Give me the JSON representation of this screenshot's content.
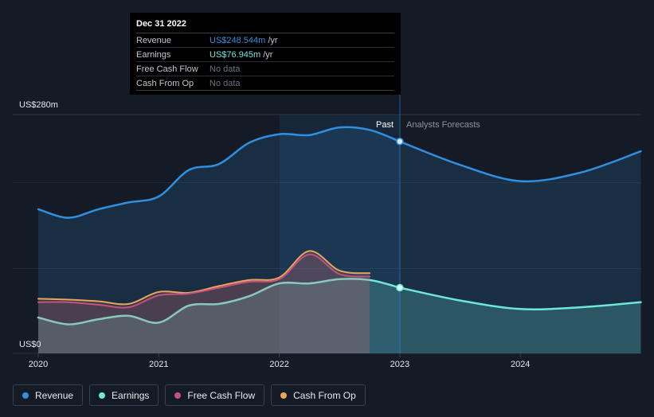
{
  "tooltip": {
    "date": "Dec 31 2022",
    "rows": [
      {
        "label": "Revenue",
        "value": "US$248.544m",
        "unit": "/yr",
        "color": "#2f8fe0"
      },
      {
        "label": "Earnings",
        "value": "US$76.945m",
        "unit": "/yr",
        "color": "#6ee7d6"
      },
      {
        "label": "Free Cash Flow",
        "value": "No data",
        "unit": ""
      },
      {
        "label": "Cash From Op",
        "value": "No data",
        "unit": ""
      }
    ]
  },
  "legend": [
    {
      "label": "Revenue",
      "color": "#2f8fe0"
    },
    {
      "label": "Earnings",
      "color": "#6ee7d6"
    },
    {
      "label": "Free Cash Flow",
      "color": "#c7507f"
    },
    {
      "label": "Cash From Op",
      "color": "#e9a65a"
    }
  ],
  "chart_data": {
    "type": "area",
    "y_labels": {
      "top": "US$280m",
      "bottom": "US$0"
    },
    "ylim": [
      0,
      280
    ],
    "xlim": [
      2019.8,
      2025.0
    ],
    "x_ticks": [
      {
        "value": 2020,
        "label": "2020"
      },
      {
        "value": 2021,
        "label": "2021"
      },
      {
        "value": 2022,
        "label": "2022"
      },
      {
        "value": 2023,
        "label": "2023"
      },
      {
        "value": 2024,
        "label": "2024"
      }
    ],
    "past_label": "Past",
    "forecast_label": "Analysts Forecasts",
    "past_cutoff": 2023.0,
    "highlight_start": 2022.0,
    "grid": true,
    "series": [
      {
        "name": "Revenue",
        "color": "#2f8fe0",
        "fill": true,
        "x": [
          2020.0,
          2020.25,
          2020.5,
          2020.75,
          2021.0,
          2021.25,
          2021.5,
          2021.75,
          2022.0,
          2022.25,
          2022.5,
          2022.75,
          2023.0
        ],
        "y": [
          169,
          159,
          169,
          177,
          184,
          215,
          222,
          247,
          257,
          256,
          265,
          262,
          248.5
        ]
      },
      {
        "name": "Revenue forecast",
        "color": "#2f8fe0",
        "fill": true,
        "forecast": true,
        "x": [
          2023.0,
          2023.5,
          2024.0,
          2024.5,
          2025.0
        ],
        "y": [
          248.5,
          221,
          202,
          212,
          237
        ]
      },
      {
        "name": "Earnings",
        "color": "#6ee7d6",
        "fill": true,
        "x": [
          2020.0,
          2020.25,
          2020.5,
          2020.75,
          2021.0,
          2021.25,
          2021.5,
          2021.75,
          2022.0,
          2022.25,
          2022.5,
          2022.75,
          2023.0
        ],
        "y": [
          42,
          34,
          40,
          44,
          36,
          56,
          58,
          67,
          82,
          82,
          87,
          86,
          77
        ]
      },
      {
        "name": "Earnings forecast",
        "color": "#6ee7d6",
        "fill": true,
        "forecast": true,
        "x": [
          2023.0,
          2023.5,
          2024.0,
          2024.5,
          2025.0
        ],
        "y": [
          77,
          62,
          52,
          54,
          60
        ]
      },
      {
        "name": "Free Cash Flow",
        "color": "#c7507f",
        "fill": true,
        "x": [
          2020.0,
          2020.25,
          2020.5,
          2020.75,
          2021.0,
          2021.25,
          2021.5,
          2021.75,
          2022.0,
          2022.25,
          2022.5,
          2022.75
        ],
        "y": [
          60,
          60,
          57,
          54,
          68,
          70,
          77,
          84,
          87,
          116,
          93,
          90
        ]
      },
      {
        "name": "Cash From Op",
        "color": "#e9a65a",
        "fill": true,
        "x": [
          2020.0,
          2020.25,
          2020.5,
          2020.75,
          2021.0,
          2021.25,
          2021.5,
          2021.75,
          2022.0,
          2022.25,
          2022.5,
          2022.75
        ],
        "y": [
          64,
          63,
          61,
          58,
          72,
          71,
          79,
          86,
          89,
          120,
          97,
          94
        ]
      }
    ]
  }
}
